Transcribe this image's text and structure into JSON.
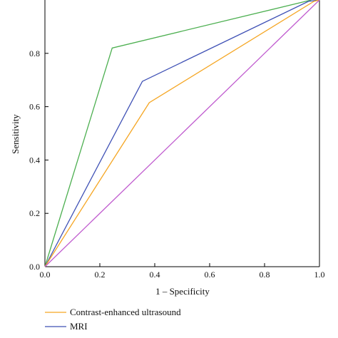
{
  "chart_data": {
    "type": "line",
    "xlabel": "1 – Specificity",
    "ylabel": "Sensitivity",
    "xlim": [
      0,
      1
    ],
    "ylim": [
      0,
      1
    ],
    "x_ticks": [
      "0.0",
      "0.2",
      "0.4",
      "0.6",
      "0.8",
      "1.0"
    ],
    "y_ticks": [
      "0.0",
      "0.2",
      "0.4",
      "0.6",
      "0.8"
    ],
    "x_tick_values": [
      0,
      0.2,
      0.4,
      0.6,
      0.8,
      1.0
    ],
    "y_tick_values": [
      0,
      0.2,
      0.4,
      0.6,
      0.8
    ],
    "grid": false,
    "legend_position": "bottom-left",
    "series": [
      {
        "name": "",
        "color": "#4caf50",
        "points": [
          [
            0,
            0
          ],
          [
            0.245,
            0.82
          ],
          [
            0.93,
            0.99
          ],
          [
            0.97,
            1.0
          ]
        ]
      },
      {
        "name": "MRI",
        "color": "#3f51b5",
        "points": [
          [
            0,
            0
          ],
          [
            0.355,
            0.695
          ],
          [
            0.96,
            0.995
          ],
          [
            1.0,
            1.0
          ]
        ]
      },
      {
        "name": "Contrast-enhanced ultrasound",
        "color": "#f5a623",
        "points": [
          [
            0,
            0
          ],
          [
            0.38,
            0.615
          ],
          [
            0.98,
            0.995
          ],
          [
            1.0,
            1.0
          ]
        ]
      },
      {
        "name": "",
        "color": "#c05ccf",
        "points": [
          [
            0,
            0
          ],
          [
            1.0,
            1.0
          ]
        ]
      }
    ],
    "legend": [
      {
        "label": "Contrast-enhanced ultrasound",
        "color": "#f5a623"
      },
      {
        "label": "MRI",
        "color": "#3f51b5"
      }
    ]
  }
}
